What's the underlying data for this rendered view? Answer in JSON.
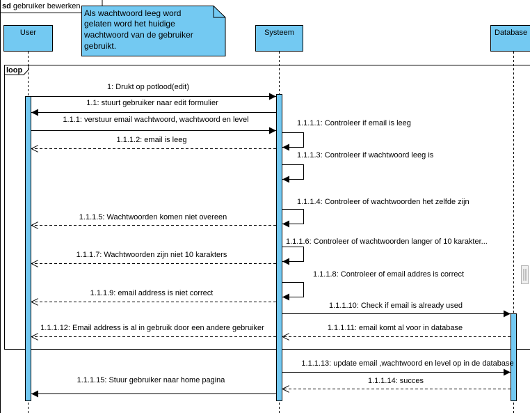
{
  "frame": {
    "keyword": "sd",
    "title": "gebruiker bewerken"
  },
  "note": {
    "lines": [
      "Als wachtwoord leeg word",
      "gelaten word het huidige",
      "wachtwoord van de gebruiker",
      "gebruikt."
    ]
  },
  "lifelines": {
    "user": "User",
    "systeem": "Systeem",
    "database": "Database"
  },
  "loop": {
    "label": "loop"
  },
  "messages": {
    "m1": "1: Drukt op potlood(edit)",
    "m2": "1.1: stuurt gebruiker naar edit formulier",
    "m3": "1.1.1: verstuur email wachtwoord, wachtwoord en level",
    "m4": "1.1.1.1: Controleer if email is leeg",
    "m5": "1.1.1.2: email is leeg",
    "m6": "1.1.1.3: Controleer if wachtwoord leeg is",
    "m7": "1.1.1.4: Controleer of wachtwoorden het zelfde zijn",
    "m8": "1.1.1.5: Wachtwoorden komen niet overeen",
    "m9": "1.1.1.6: Controleer of wachtwoorden langer of 10 karakter...",
    "m10": "1.1.1.7: Wachtwoorden zijn niet 10 karakters",
    "m11": "1.1.1.8: Controleer of email addres is correct",
    "m12": "1.1.1.9: email address is niet correct",
    "m13": "1.1.1.10: Check if email is already used",
    "m14": "1.1.1.11: email komt al voor in database",
    "m15": "1.1.1.12: Email address is al in gebruik door een andere gebruiker",
    "m16": "1.1.1.13: update email ,wachtwoord en level op in de database",
    "m17": "1.1.1.14: succes",
    "m18": "1.1.1.15: Stuur gebruiker naar home pagina"
  },
  "colors": {
    "lifeline_fill": "#73c9f2",
    "note_fill": "#73c9f2",
    "activation_fill": "#73c9f2",
    "line": "#000000"
  }
}
